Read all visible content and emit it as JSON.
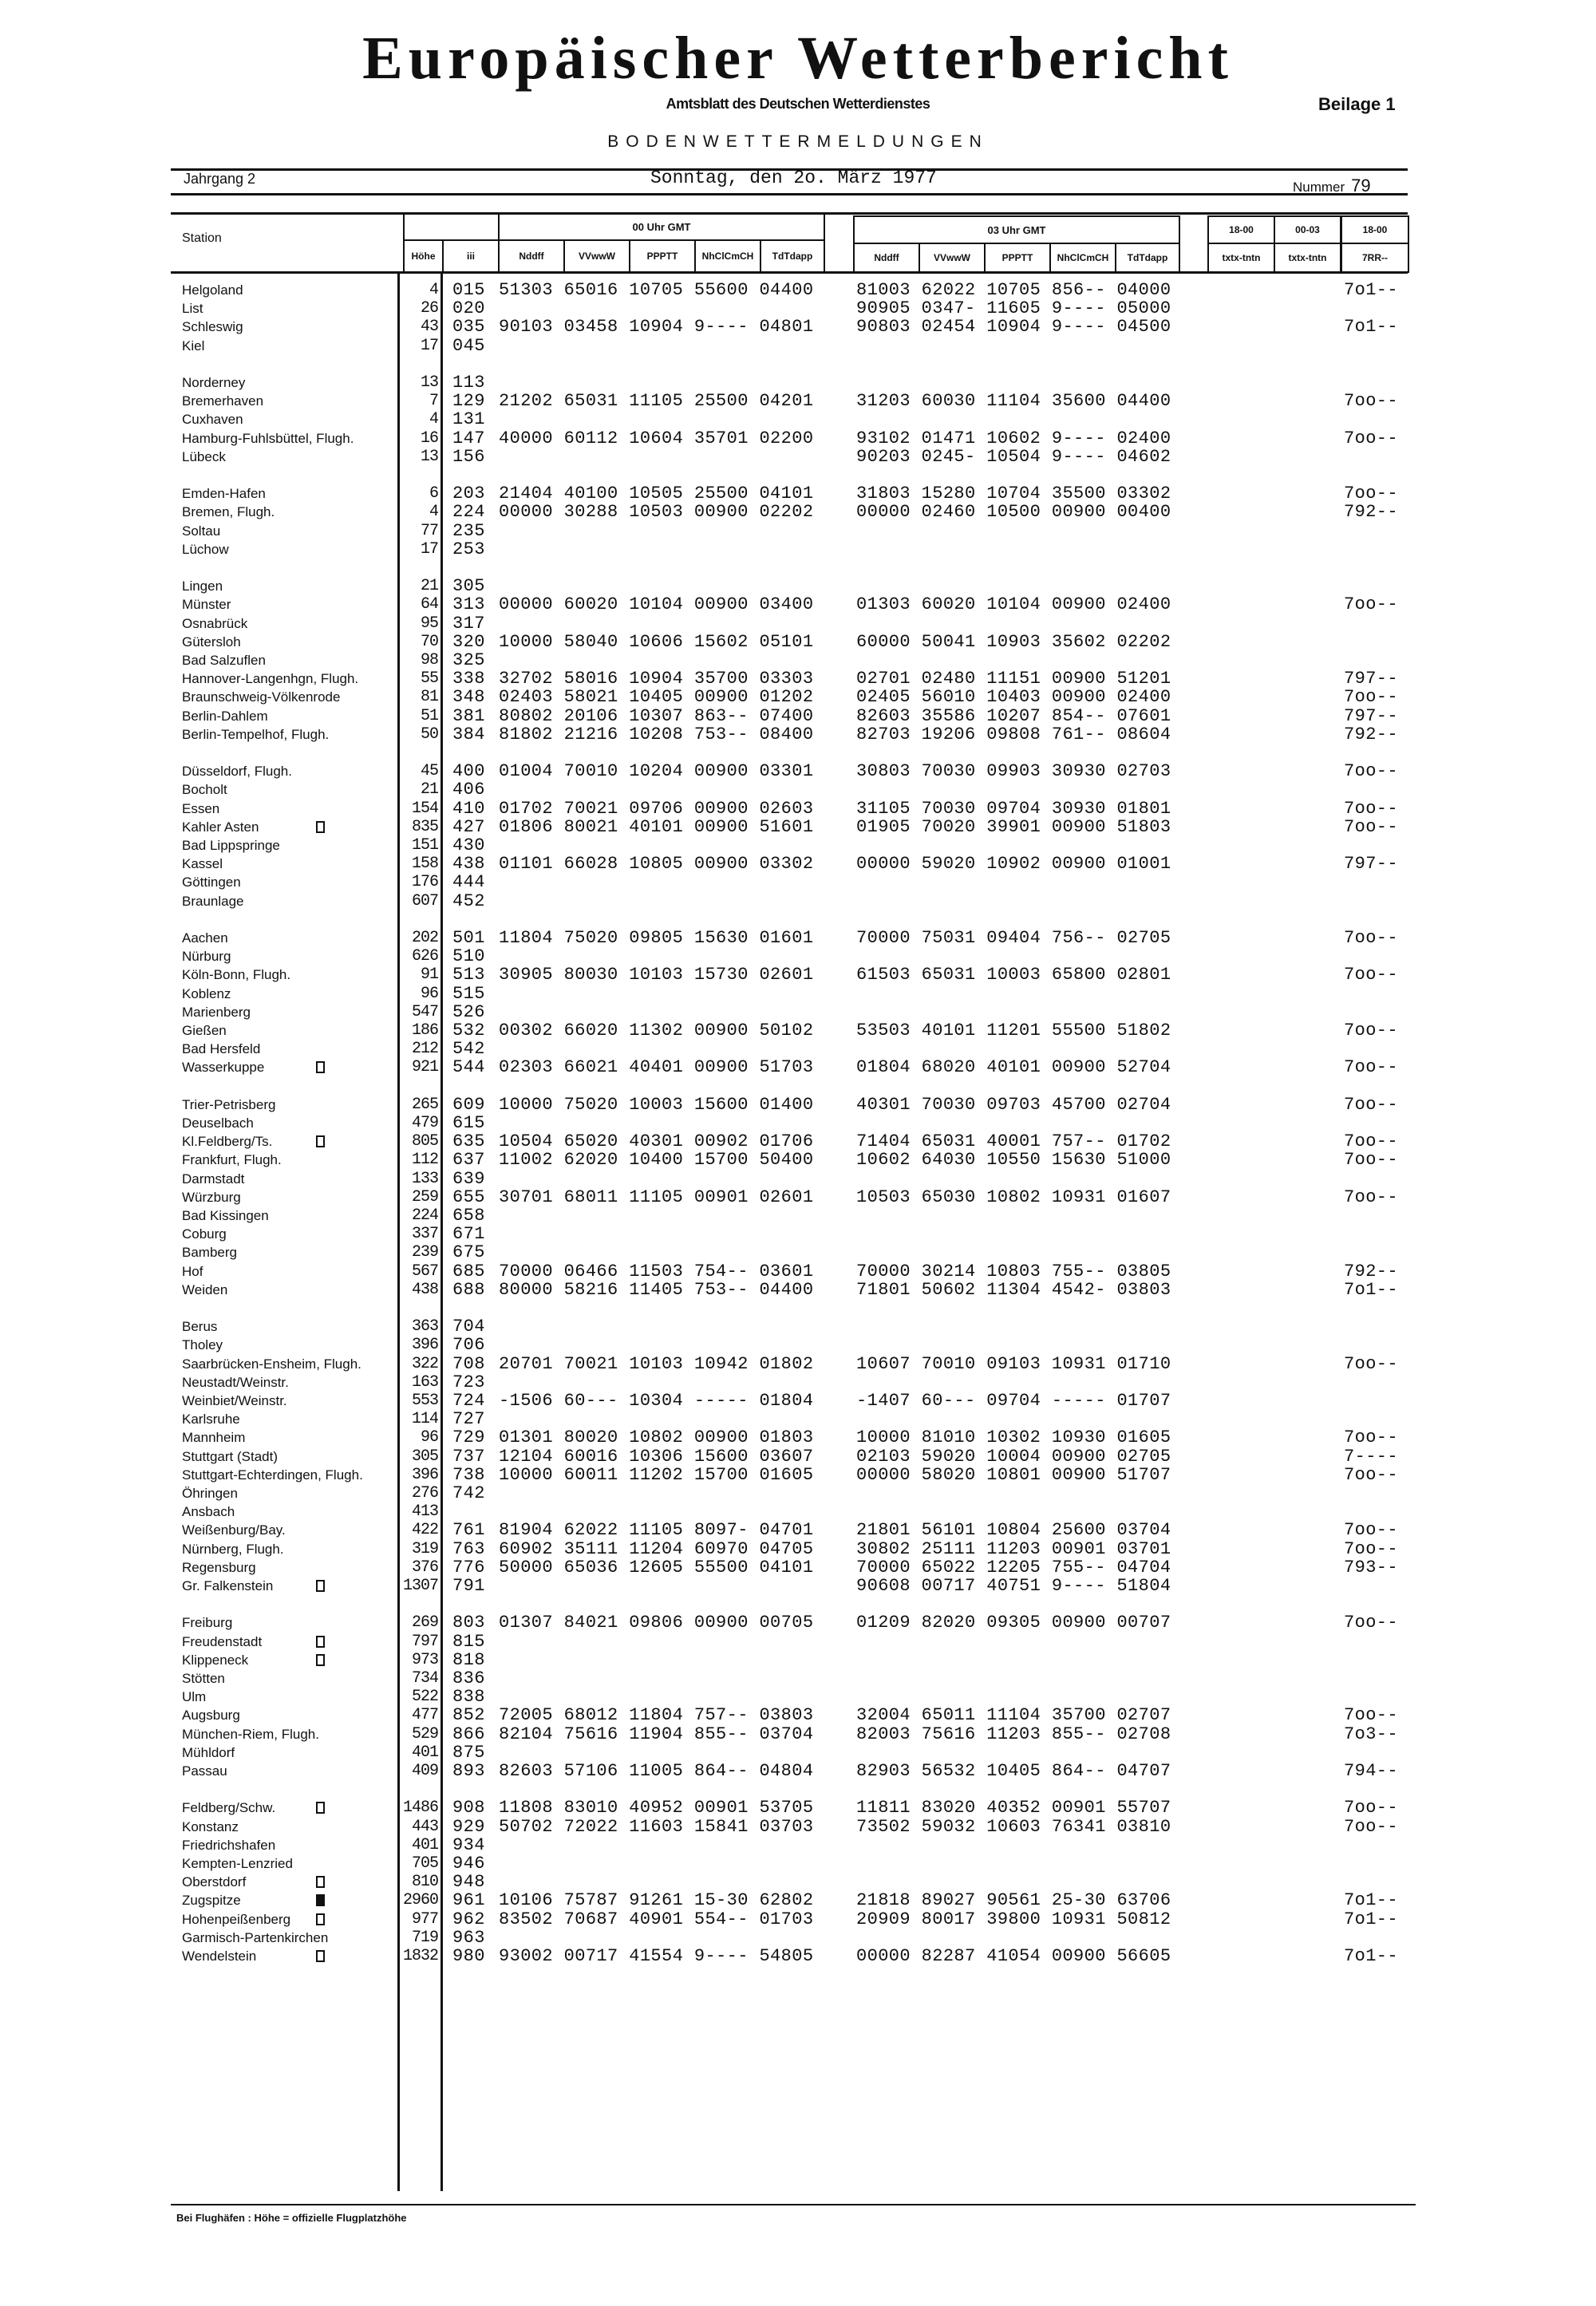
{
  "header": {
    "title": "Europäischer Wetterbericht",
    "subtitle": "Amtsblatt des Deutschen Wetterdienstes",
    "supplement": "Beilage 1",
    "section": "BODENWETTERMELDUNGEN",
    "volume": "Jahrgang 2",
    "date": "Sonntag, den 2o. März 1977",
    "number_label": "Nummer",
    "number": "79"
  },
  "table_header": {
    "station": "Station",
    "height": "Höhe",
    "iii": "iii",
    "block00": "00 Uhr GMT",
    "block03": "03 Uhr GMT",
    "cols00": [
      "Nddff",
      "VVwwW",
      "PPPTT",
      "NhClCmCH",
      "TdTdapp"
    ],
    "cols03": [
      "Nddff",
      "VVwwW",
      "PPPTT",
      "NhClCmCH",
      "TdTdapp"
    ],
    "extra_top": [
      "18-00",
      "00-03",
      "18-00"
    ],
    "extra_bottom": [
      "txtx-tntn",
      "txtx-tntn",
      "7RR--"
    ]
  },
  "groups": [
    [
      {
        "name": "Helgoland",
        "h": "4",
        "iii": "015",
        "o0": "51303 65016 10705 55600 04400",
        "o3": "81003 62022 10705 856-- 04000",
        "rr": "7o1--"
      },
      {
        "name": "List",
        "h": "26",
        "iii": "020",
        "o0": "",
        "o3": "90905 0347- 11605 9---- 05000",
        "rr": ""
      },
      {
        "name": "Schleswig",
        "h": "43",
        "iii": "035",
        "o0": "90103 03458 10904 9---- 04801",
        "o3": "90803 02454 10904 9---- 04500",
        "rr": "7o1--"
      },
      {
        "name": "Kiel",
        "h": "17",
        "iii": "045",
        "o0": "",
        "o3": "",
        "rr": ""
      }
    ],
    [
      {
        "name": "Norderney",
        "h": "13",
        "iii": "113",
        "o0": "",
        "o3": "",
        "rr": ""
      },
      {
        "name": "Bremerhaven",
        "h": "7",
        "iii": "129",
        "o0": "21202 65031 11105 25500 04201",
        "o3": "31203 60030 11104 35600 04400",
        "rr": "7oo--"
      },
      {
        "name": "Cuxhaven",
        "h": "4",
        "iii": "131",
        "o0": "",
        "o3": "",
        "rr": ""
      },
      {
        "name": "Hamburg-Fuhlsbüttel, Flugh.",
        "h": "16",
        "iii": "147",
        "o0": "40000 60112 10604 35701 02200",
        "o3": "93102 01471 10602 9---- 02400",
        "rr": "7oo--"
      },
      {
        "name": "Lübeck",
        "h": "13",
        "iii": "156",
        "o0": "",
        "o3": "90203 0245- 10504 9---- 04602",
        "rr": ""
      }
    ],
    [
      {
        "name": "Emden-Hafen",
        "h": "6",
        "iii": "203",
        "o0": "21404 40100 10505 25500 04101",
        "o3": "31803 15280 10704 35500 03302",
        "rr": "7oo--"
      },
      {
        "name": "Bremen, Flugh.",
        "h": "4",
        "iii": "224",
        "o0": "00000 30288 10503 00900 02202",
        "o3": "00000 02460 10500 00900 00400",
        "rr": "792--"
      },
      {
        "name": "Soltau",
        "h": "77",
        "iii": "235",
        "o0": "",
        "o3": "",
        "rr": ""
      },
      {
        "name": "Lüchow",
        "h": "17",
        "iii": "253",
        "o0": "",
        "o3": "",
        "rr": ""
      }
    ],
    [
      {
        "name": "Lingen",
        "h": "21",
        "iii": "305",
        "o0": "",
        "o3": "",
        "rr": ""
      },
      {
        "name": "Münster",
        "h": "64",
        "iii": "313",
        "o0": "00000 60020 10104 00900 03400",
        "o3": "01303 60020 10104 00900 02400",
        "rr": "7oo--"
      },
      {
        "name": "Osnabrück",
        "h": "95",
        "iii": "317",
        "o0": "",
        "o3": "",
        "rr": ""
      },
      {
        "name": "Gütersloh",
        "h": "70",
        "iii": "320",
        "o0": "10000 58040 10606 15602 05101",
        "o3": "60000 50041 10903 35602 02202",
        "rr": ""
      },
      {
        "name": "Bad Salzuflen",
        "h": "98",
        "iii": "325",
        "o0": "",
        "o3": "",
        "rr": ""
      },
      {
        "name": "Hannover-Langenhgn, Flugh.",
        "h": "55",
        "iii": "338",
        "o0": "32702 58016 10904 35700 03303",
        "o3": "02701 02480 11151 00900 51201",
        "rr": "797--"
      },
      {
        "name": "Braunschweig-Völkenrode",
        "h": "81",
        "iii": "348",
        "o0": "02403 58021 10405 00900 01202",
        "o3": "02405 56010 10403 00900 02400",
        "rr": "7oo--"
      },
      {
        "name": "Berlin-Dahlem",
        "h": "51",
        "iii": "381",
        "o0": "80802 20106 10307 863-- 07400",
        "o3": "82603 35586 10207 854-- 07601",
        "rr": "797--"
      },
      {
        "name": "Berlin-Tempelhof, Flugh.",
        "h": "50",
        "iii": "384",
        "o0": "81802 21216 10208 753-- 08400",
        "o3": "82703 19206 09808 761-- 08604",
        "rr": "792--"
      }
    ],
    [
      {
        "name": "Düsseldorf, Flugh.",
        "h": "45",
        "iii": "400",
        "o0": "01004 70010 10204 00900 03301",
        "o3": "30803 70030 09903 30930 02703",
        "rr": "7oo--"
      },
      {
        "name": "Bocholt",
        "h": "21",
        "iii": "406",
        "o0": "",
        "o3": "",
        "rr": ""
      },
      {
        "name": "Essen",
        "h": "154",
        "iii": "410",
        "o0": "01702 70021 09706 00900 02603",
        "o3": "31105 70030 09704 30930 01801",
        "rr": "7oo--"
      },
      {
        "name": "Kahler Asten",
        "h": "835",
        "iii": "427",
        "o0": "01806 80021 40101 00900 51601",
        "o3": "01905 70020 39901 00900 51803",
        "rr": "7oo--",
        "marker": "open"
      },
      {
        "name": "Bad Lippspringe",
        "h": "151",
        "iii": "430",
        "o0": "",
        "o3": "",
        "rr": ""
      },
      {
        "name": "Kassel",
        "h": "158",
        "iii": "438",
        "o0": "01101 66028 10805 00900 03302",
        "o3": "00000 59020 10902 00900 01001",
        "rr": "797--"
      },
      {
        "name": "Göttingen",
        "h": "176",
        "iii": "444",
        "o0": "",
        "o3": "",
        "rr": ""
      },
      {
        "name": "Braunlage",
        "h": "607",
        "iii": "452",
        "o0": "",
        "o3": "",
        "rr": ""
      }
    ],
    [
      {
        "name": "Aachen",
        "h": "202",
        "iii": "501",
        "o0": "11804 75020 09805 15630 01601",
        "o3": "70000 75031 09404 756-- 02705",
        "rr": "7oo--"
      },
      {
        "name": "Nürburg",
        "h": "626",
        "iii": "510",
        "o0": "",
        "o3": "",
        "rr": ""
      },
      {
        "name": "Köln-Bonn, Flugh.",
        "h": "91",
        "iii": "513",
        "o0": "30905 80030 10103 15730 02601",
        "o3": "61503 65031 10003 65800 02801",
        "rr": "7oo--"
      },
      {
        "name": "Koblenz",
        "h": "96",
        "iii": "515",
        "o0": "",
        "o3": "",
        "rr": ""
      },
      {
        "name": "Marienberg",
        "h": "547",
        "iii": "526",
        "o0": "",
        "o3": "",
        "rr": ""
      },
      {
        "name": "Gießen",
        "h": "186",
        "iii": "532",
        "o0": "00302 66020 11302 00900 50102",
        "o3": "53503 40101 11201 55500 51802",
        "rr": "7oo--"
      },
      {
        "name": "Bad Hersfeld",
        "h": "212",
        "iii": "542",
        "o0": "",
        "o3": "",
        "rr": ""
      },
      {
        "name": "Wasserkuppe",
        "h": "921",
        "iii": "544",
        "o0": "02303 66021 40401 00900 51703",
        "o3": "01804 68020 40101 00900 52704",
        "rr": "7oo--",
        "marker": "open"
      }
    ],
    [
      {
        "name": "Trier-Petrisberg",
        "h": "265",
        "iii": "609",
        "o0": "10000 75020 10003 15600 01400",
        "o3": "40301 70030 09703 45700 02704",
        "rr": "7oo--"
      },
      {
        "name": "Deuselbach",
        "h": "479",
        "iii": "615",
        "o0": "",
        "o3": "",
        "rr": ""
      },
      {
        "name": "Kl.Feldberg/Ts.",
        "h": "805",
        "iii": "635",
        "o0": "10504 65020 40301 00902 01706",
        "o3": "71404 65031 40001 757-- 01702",
        "rr": "7oo--",
        "marker": "open"
      },
      {
        "name": "Frankfurt, Flugh.",
        "h": "112",
        "iii": "637",
        "o0": "11002 62020 10400 15700 50400",
        "o3": "10602 64030 10550 15630 51000",
        "rr": "7oo--"
      },
      {
        "name": "Darmstadt",
        "h": "133",
        "iii": "639",
        "o0": "",
        "o3": "",
        "rr": ""
      },
      {
        "name": "Würzburg",
        "h": "259",
        "iii": "655",
        "o0": "30701 68011 11105 00901 02601",
        "o3": "10503 65030 10802 10931 01607",
        "rr": "7oo--"
      },
      {
        "name": "Bad Kissingen",
        "h": "224",
        "iii": "658",
        "o0": "",
        "o3": "",
        "rr": ""
      },
      {
        "name": "Coburg",
        "h": "337",
        "iii": "671",
        "o0": "",
        "o3": "",
        "rr": ""
      },
      {
        "name": "Bamberg",
        "h": "239",
        "iii": "675",
        "o0": "",
        "o3": "",
        "rr": ""
      },
      {
        "name": "Hof",
        "h": "567",
        "iii": "685",
        "o0": "70000 06466 11503 754-- 03601",
        "o3": "70000 30214 10803 755-- 03805",
        "rr": "792--"
      },
      {
        "name": "Weiden",
        "h": "438",
        "iii": "688",
        "o0": "80000 58216 11405 753-- 04400",
        "o3": "71801 50602 11304 4542- 03803",
        "rr": "7o1--"
      }
    ],
    [
      {
        "name": "Berus",
        "h": "363",
        "iii": "704",
        "o0": "",
        "o3": "",
        "rr": ""
      },
      {
        "name": "Tholey",
        "h": "396",
        "iii": "706",
        "o0": "",
        "o3": "",
        "rr": ""
      },
      {
        "name": "Saarbrücken-Ensheim, Flugh.",
        "h": "322",
        "iii": "708",
        "o0": "20701 70021 10103 10942 01802",
        "o3": "10607 70010 09103 10931 01710",
        "rr": "7oo--"
      },
      {
        "name": "Neustadt/Weinstr.",
        "h": "163",
        "iii": "723",
        "o0": "",
        "o3": "",
        "rr": ""
      },
      {
        "name": "Weinbiet/Weinstr.",
        "h": "553",
        "iii": "724",
        "o0": "-1506 60--- 10304 ----- 01804",
        "o3": "-1407 60--- 09704 ----- 01707",
        "rr": ""
      },
      {
        "name": "Karlsruhe",
        "h": "114",
        "iii": "727",
        "o0": "",
        "o3": "",
        "rr": ""
      },
      {
        "name": "Mannheim",
        "h": "96",
        "iii": "729",
        "o0": "01301 80020 10802 00900 01803",
        "o3": "10000 81010 10302 10930 01605",
        "rr": "7oo--"
      },
      {
        "name": "Stuttgart (Stadt)",
        "h": "305",
        "iii": "737",
        "o0": "12104 60016 10306 15600 03607",
        "o3": "02103 59020 10004 00900 02705",
        "rr": "7----"
      },
      {
        "name": "Stuttgart-Echterdingen, Flugh.",
        "h": "396",
        "iii": "738",
        "o0": "10000 60011 11202 15700 01605",
        "o3": "00000 58020 10801 00900 51707",
        "rr": "7oo--"
      },
      {
        "name": "Öhringen",
        "h": "276",
        "iii": "742",
        "o0": "",
        "o3": "",
        "rr": ""
      },
      {
        "name": "Ansbach",
        "h": "413",
        "iii": "",
        "o0": "",
        "o3": "",
        "rr": ""
      },
      {
        "name": "Weißenburg/Bay.",
        "h": "422",
        "iii": "761",
        "o0": "81904 62022 11105 8097- 04701",
        "o3": "21801 56101 10804 25600 03704",
        "rr": "7oo--"
      },
      {
        "name": "Nürnberg, Flugh.",
        "h": "319",
        "iii": "763",
        "o0": "60902 35111 11204 60970 04705",
        "o3": "30802 25111 11203 00901 03701",
        "rr": "7oo--"
      },
      {
        "name": "Regensburg",
        "h": "376",
        "iii": "776",
        "o0": "50000 65036 12605 55500 04101",
        "o3": "70000 65022 12205 755-- 04704",
        "rr": "793--"
      },
      {
        "name": "Gr. Falkenstein",
        "h": "1307",
        "iii": "791",
        "o0": "",
        "o3": "90608 00717 40751 9---- 51804",
        "rr": "",
        "marker": "open"
      }
    ],
    [
      {
        "name": "Freiburg",
        "h": "269",
        "iii": "803",
        "o0": "01307 84021 09806 00900 00705",
        "o3": "01209 82020 09305 00900 00707",
        "rr": "7oo--"
      },
      {
        "name": "Freudenstadt",
        "h": "797",
        "iii": "815",
        "o0": "",
        "o3": "",
        "rr": "",
        "marker": "open"
      },
      {
        "name": "Klippeneck",
        "h": "973",
        "iii": "818",
        "o0": "",
        "o3": "",
        "rr": "",
        "marker": "open"
      },
      {
        "name": "Stötten",
        "h": "734",
        "iii": "836",
        "o0": "",
        "o3": "",
        "rr": ""
      },
      {
        "name": "Ulm",
        "h": "522",
        "iii": "838",
        "o0": "",
        "o3": "",
        "rr": ""
      },
      {
        "name": "Augsburg",
        "h": "477",
        "iii": "852",
        "o0": "72005 68012 11804 757-- 03803",
        "o3": "32004 65011 11104 35700 02707",
        "rr": "7oo--"
      },
      {
        "name": "München-Riem, Flugh.",
        "h": "529",
        "iii": "866",
        "o0": "82104 75616 11904 855-- 03704",
        "o3": "82003 75616 11203 855-- 02708",
        "rr": "7o3--"
      },
      {
        "name": "Mühldorf",
        "h": "401",
        "iii": "875",
        "o0": "",
        "o3": "",
        "rr": ""
      },
      {
        "name": "Passau",
        "h": "409",
        "iii": "893",
        "o0": "82603 57106 11005 864-- 04804",
        "o3": "82903 56532 10405 864-- 04707",
        "rr": "794--"
      }
    ],
    [
      {
        "name": "Feldberg/Schw.",
        "h": "1486",
        "iii": "908",
        "o0": "11808 83010 40952 00901 53705",
        "o3": "11811 83020 40352 00901 55707",
        "rr": "7oo--",
        "marker": "open"
      },
      {
        "name": "Konstanz",
        "h": "443",
        "iii": "929",
        "o0": "50702 72022 11603 15841 03703",
        "o3": "73502 59032 10603 76341 03810",
        "rr": "7oo--"
      },
      {
        "name": "Friedrichshafen",
        "h": "401",
        "iii": "934",
        "o0": "",
        "o3": "",
        "rr": ""
      },
      {
        "name": "Kempten-Lenzried",
        "h": "705",
        "iii": "946",
        "o0": "",
        "o3": "",
        "rr": ""
      },
      {
        "name": "Oberstdorf",
        "h": "810",
        "iii": "948",
        "o0": "",
        "o3": "",
        "rr": "",
        "marker": "open"
      },
      {
        "name": "Zugspitze",
        "h": "2960",
        "iii": "961",
        "o0": "10106 75787 91261 15-30 62802",
        "o3": "21818 89027 90561 25-30 63706",
        "rr": "7o1--",
        "marker": "filled"
      },
      {
        "name": "Hohenpeißenberg",
        "h": "977",
        "iii": "962",
        "o0": "83502 70687 40901 554-- 01703",
        "o3": "20909 80017 39800 10931 50812",
        "rr": "7o1--",
        "marker": "open"
      },
      {
        "name": "Garmisch-Partenkirchen",
        "h": "719",
        "iii": "963",
        "o0": "",
        "o3": "",
        "rr": ""
      },
      {
        "name": "Wendelstein",
        "h": "1832",
        "iii": "980",
        "o0": "93002 00717 41554 9---- 54805",
        "o3": "00000 82287 41054 00900 56605",
        "rr": "7o1--",
        "marker": "open"
      }
    ]
  ],
  "footer": "Bei Flughäfen : Höhe = offizielle Flugplatzhöhe"
}
